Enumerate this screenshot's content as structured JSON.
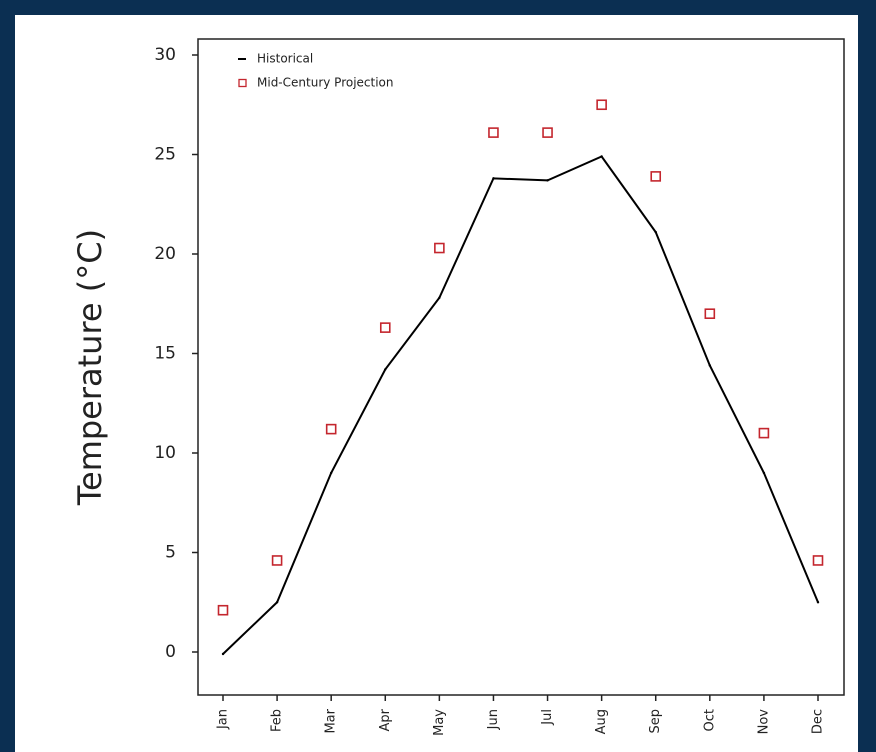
{
  "chart_data": {
    "type": "line",
    "ylabel": "Temperature (°C)",
    "xlabel": "",
    "categories": [
      "Jan",
      "Feb",
      "Mar",
      "Apr",
      "May",
      "Jun",
      "Jul",
      "Aug",
      "Sep",
      "Oct",
      "Nov",
      "Dec"
    ],
    "ylim": [
      -1.5,
      31
    ],
    "yticks": [
      0,
      5,
      10,
      15,
      20,
      25,
      30
    ],
    "grid": false,
    "legend_position": "top-left",
    "series": [
      {
        "name": "Historical",
        "style": "line",
        "color": "#000000",
        "values": [
          -0.1,
          2.5,
          9.0,
          14.2,
          17.8,
          23.8,
          23.7,
          24.9,
          21.1,
          14.4,
          9.0,
          2.5
        ]
      },
      {
        "name": "Mid-Century Projection",
        "style": "open-square",
        "color": "#c4262e",
        "values": [
          2.1,
          4.6,
          11.2,
          16.3,
          20.3,
          26.1,
          26.1,
          27.5,
          23.9,
          17.0,
          11.0,
          4.6
        ]
      }
    ]
  },
  "colors": {
    "background": "#0b2f52",
    "panel": "#ffffff",
    "axis": "#222222"
  }
}
